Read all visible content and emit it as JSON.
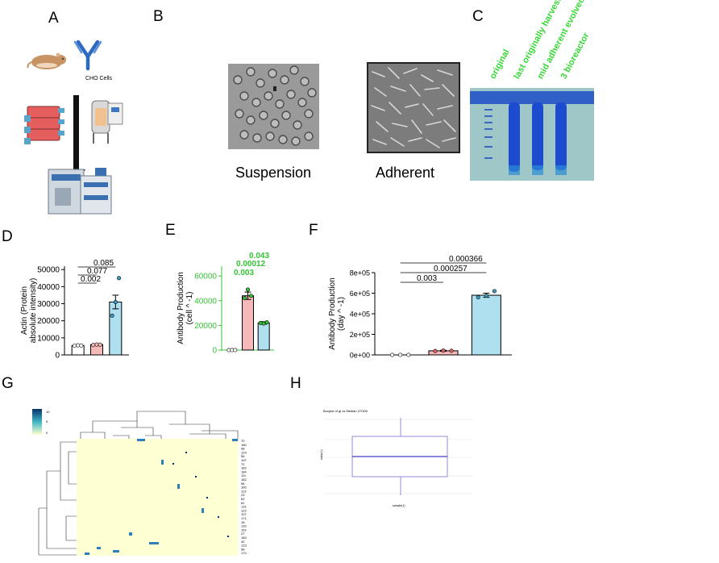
{
  "panels": {
    "a": {
      "label": "A",
      "cho_label": "CHO Cells"
    },
    "b": {
      "label": "B",
      "suspension": "Suspension",
      "adherent": "Adherent"
    },
    "c": {
      "label": "C",
      "lanes": [
        "original",
        "last originally harvested",
        "mid adherent evolved",
        "3 bioreactor"
      ]
    },
    "d": {
      "label": "D"
    },
    "e": {
      "label": "E"
    },
    "f": {
      "label": "F"
    },
    "g": {
      "label": "G",
      "scale_ticks": [
        "10",
        "5",
        "0"
      ],
      "row_labels": [
        "70",
        "180",
        "98",
        "129",
        "56",
        "197",
        "72",
        "182",
        "184",
        "111",
        "182",
        "96",
        "160",
        "113",
        "23",
        "62",
        "61",
        "131",
        "122",
        "107",
        "171",
        "18",
        "132",
        "152",
        "27",
        "183",
        "42",
        "123",
        "98",
        "170"
      ]
    },
    "h": {
      "label": "H",
      "title": "Boxplot of gt vs Median 27/300",
      "xlabel": "sample(1)",
      "ylabel": "value(1)"
    }
  },
  "chart_data": [
    {
      "type": "bar",
      "panel": "D",
      "ylabel": "Actin (Protein absolute intensity)",
      "categories": [
        "",
        "",
        ""
      ],
      "values": [
        5500,
        6000,
        31000
      ],
      "errors": [
        300,
        400,
        4000
      ],
      "points": [
        [
          5400,
          5600,
          5500
        ],
        [
          5800,
          6100,
          6000
        ],
        [
          23000,
          31000,
          45000
        ]
      ],
      "colors": [
        "#ffffff",
        "#f7b8b8",
        "#aee0f0"
      ],
      "yticks": [
        "0",
        "10000",
        "20000",
        "30000",
        "40000",
        "50000"
      ],
      "ylim": [
        0,
        52000
      ],
      "pvalues": [
        "0.002",
        "0.077",
        "0.085"
      ]
    },
    {
      "type": "bar",
      "panel": "E",
      "ylabel": "Antibody Production (cell ^ -1)",
      "categories": [
        "",
        "",
        ""
      ],
      "values": [
        0,
        44000,
        22000
      ],
      "errors": [
        0,
        3000,
        1000
      ],
      "points": [
        [
          0,
          0,
          0
        ],
        [
          42000,
          49000,
          44000
        ],
        [
          22000,
          21500,
          22500
        ]
      ],
      "colors": [
        "#ffffff",
        "#f7b8b8",
        "#aee0f0"
      ],
      "yticks": [
        "0",
        "20000",
        "40000",
        "60000"
      ],
      "ylim": [
        0,
        68000
      ],
      "pvalues": [
        "0.003",
        "0.00012",
        "0.043"
      ]
    },
    {
      "type": "bar",
      "panel": "F",
      "ylabel": "Antibody Production (day ^ -1)",
      "categories": [
        "",
        "",
        ""
      ],
      "values": [
        0,
        40000,
        580000
      ],
      "errors": [
        0,
        5000,
        20000
      ],
      "points": [
        [
          0,
          0,
          0
        ],
        [
          38000,
          42000,
          40000
        ],
        [
          560000,
          575000,
          620000
        ]
      ],
      "colors": [
        "#ffffff",
        "#f7b8b8",
        "#aee0f0"
      ],
      "yticks": [
        "0e+00",
        "2e+05",
        "4e+05",
        "6e+05",
        "8e+05"
      ],
      "ylim": [
        0,
        800000
      ],
      "pvalues": [
        "0.003",
        "0.000257",
        "0.000366"
      ]
    }
  ]
}
